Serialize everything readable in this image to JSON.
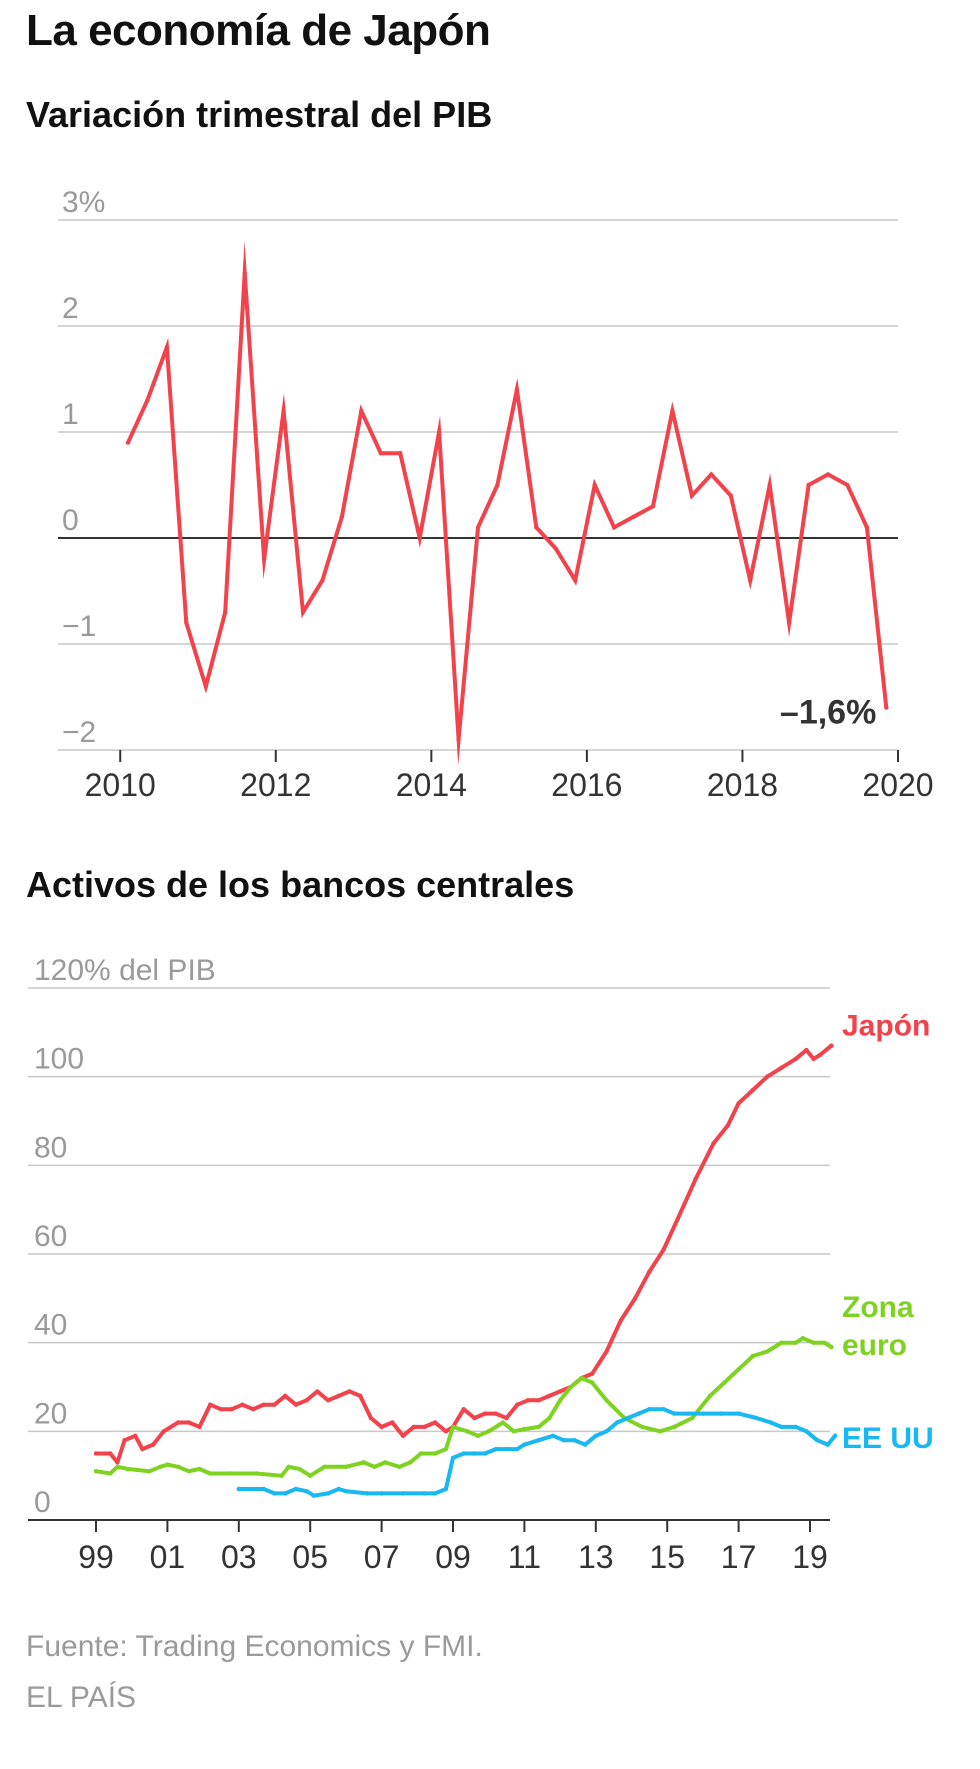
{
  "title": "La economía de Japón",
  "source": "Fuente: Trading Economics y FMI.",
  "credit": "EL PAÍS",
  "chart_data": [
    {
      "type": "line",
      "title": "Variación trimestral del PIB",
      "ylim": [
        -2,
        3
      ],
      "xlim": [
        2009.2,
        2020
      ],
      "y_ticks": [
        3,
        2,
        1,
        0,
        -1,
        -2
      ],
      "y_tick_labels": [
        "3%",
        "2",
        "1",
        "0",
        "−1",
        "−2"
      ],
      "x_ticks": [
        2010,
        2012,
        2014,
        2016,
        2018,
        2020
      ],
      "x_tick_labels": [
        "2010",
        "2012",
        "2014",
        "2016",
        "2018",
        "2020"
      ],
      "grid": true,
      "annotation": "–1,6%",
      "series": [
        {
          "color": "#f2424b",
          "x": [
            2010.1,
            2010.35,
            2010.6,
            2010.85,
            2011.1,
            2011.35,
            2011.6,
            2011.85,
            2012.1,
            2012.35,
            2012.6,
            2012.85,
            2013.1,
            2013.35,
            2013.6,
            2013.85,
            2014.1,
            2014.35,
            2014.6,
            2014.85,
            2015.1,
            2015.35,
            2015.6,
            2015.85,
            2016.1,
            2016.35,
            2016.6,
            2016.85,
            2017.1,
            2017.35,
            2017.6,
            2017.85,
            2018.1,
            2018.35,
            2018.6,
            2018.85,
            2019.1,
            2019.35,
            2019.6,
            2019.85
          ],
          "values": [
            0.9,
            1.3,
            1.8,
            -0.8,
            -1.4,
            -0.7,
            2.5,
            -0.2,
            1.2,
            -0.7,
            -0.4,
            0.2,
            1.2,
            0.8,
            0.8,
            0.0,
            1.0,
            -1.9,
            0.1,
            0.5,
            1.4,
            0.1,
            -0.1,
            -0.4,
            0.5,
            0.1,
            0.2,
            0.3,
            1.2,
            0.4,
            0.6,
            0.4,
            -0.4,
            0.5,
            -0.8,
            0.5,
            0.6,
            0.5,
            0.1,
            -1.6
          ]
        }
      ]
    },
    {
      "type": "line",
      "title": "Activos de los bancos centrales",
      "ylim": [
        0,
        120
      ],
      "xlim": [
        1999,
        2020.3
      ],
      "y_ticks": [
        120,
        100,
        80,
        60,
        40,
        20,
        0
      ],
      "y_tick_labels": [
        "120% del PIB",
        "100",
        "80",
        "60",
        "40",
        "20",
        "0"
      ],
      "x_ticks": [
        1999,
        2001,
        2003,
        2005,
        2007,
        2009,
        2011,
        2013,
        2015,
        2017,
        2019
      ],
      "x_tick_labels": [
        "99",
        "01",
        "03",
        "05",
        "07",
        "09",
        "11",
        "13",
        "15",
        "17",
        "19"
      ],
      "grid": true,
      "series": [
        {
          "name": "Japón",
          "color": "#f2424b",
          "x": [
            1999.0,
            1999.4,
            1999.6,
            1999.8,
            2000.1,
            2000.3,
            2000.6,
            2000.9,
            2001.3,
            2001.6,
            2001.9,
            2002.2,
            2002.5,
            2002.8,
            2003.1,
            2003.4,
            2003.7,
            2004.0,
            2004.3,
            2004.6,
            2004.9,
            2005.2,
            2005.5,
            2005.8,
            2006.1,
            2006.4,
            2006.7,
            2007.0,
            2007.3,
            2007.6,
            2007.9,
            2008.2,
            2008.5,
            2008.8,
            2009.0,
            2009.3,
            2009.6,
            2009.9,
            2010.2,
            2010.5,
            2010.8,
            2011.1,
            2011.4,
            2011.7,
            2012.0,
            2012.3,
            2012.6,
            2012.9,
            2013.3,
            2013.7,
            2014.1,
            2014.5,
            2014.9,
            2015.3,
            2015.8,
            2016.3,
            2016.7,
            2017.0,
            2017.4,
            2017.8,
            2018.2,
            2018.6,
            2018.9,
            2019.1,
            2019.3,
            2019.6
          ],
          "values": [
            15,
            15,
            13,
            18,
            19,
            16,
            17,
            20,
            22,
            22,
            21,
            26,
            25,
            25,
            26,
            25,
            26,
            26,
            28,
            26,
            27,
            29,
            27,
            28,
            29,
            28,
            23,
            21,
            22,
            19,
            21,
            21,
            22,
            20,
            21,
            25,
            23,
            24,
            24,
            23,
            26,
            27,
            27,
            28,
            29,
            30,
            32,
            33,
            38,
            45,
            50,
            56,
            61,
            68,
            77,
            85,
            89,
            94,
            97,
            100,
            102,
            104,
            106,
            104,
            105,
            107
          ]
        },
        {
          "name": "Zona euro",
          "color": "#7ed321",
          "x": [
            1999.0,
            1999.4,
            1999.6,
            1999.9,
            2000.5,
            2000.8,
            2001.0,
            2001.3,
            2001.6,
            2001.9,
            2002.2,
            2002.8,
            2003.5,
            2004.2,
            2004.4,
            2004.7,
            2005.0,
            2005.4,
            2006.0,
            2006.5,
            2006.8,
            2007.1,
            2007.5,
            2007.8,
            2008.1,
            2008.5,
            2008.8,
            2009.0,
            2009.4,
            2009.7,
            2010.0,
            2010.4,
            2010.7,
            2011.0,
            2011.4,
            2011.7,
            2012.0,
            2012.3,
            2012.6,
            2012.9,
            2013.3,
            2013.8,
            2014.3,
            2014.8,
            2015.2,
            2015.7,
            2016.2,
            2016.6,
            2017.0,
            2017.4,
            2017.8,
            2018.2,
            2018.6,
            2018.8,
            2019.1,
            2019.4,
            2019.6
          ],
          "values": [
            11,
            10.5,
            12,
            11.5,
            11,
            12,
            12.5,
            12,
            11,
            11.5,
            10.5,
            10.5,
            10.5,
            10,
            12,
            11.5,
            10,
            12,
            12,
            13,
            12,
            13,
            12,
            13,
            15,
            15,
            16,
            21,
            20,
            19,
            20,
            22,
            20,
            20.5,
            21,
            23,
            27,
            30,
            32,
            31,
            27,
            23,
            21,
            20,
            21,
            23,
            28,
            31,
            34,
            37,
            38,
            40,
            40,
            41,
            40,
            40,
            39
          ]
        },
        {
          "name": "EE UU",
          "color": "#18b8f0",
          "x": [
            2003.0,
            2003.7,
            2004.0,
            2004.3,
            2004.6,
            2004.9,
            2005.1,
            2005.5,
            2005.8,
            2006.0,
            2006.6,
            2007.0,
            2007.6,
            2008.2,
            2008.5,
            2008.8,
            2009.0,
            2009.3,
            2009.6,
            2009.9,
            2010.2,
            2010.5,
            2010.8,
            2011.0,
            2011.4,
            2011.8,
            2012.1,
            2012.4,
            2012.7,
            2013.0,
            2013.3,
            2013.6,
            2013.9,
            2014.2,
            2014.5,
            2014.9,
            2015.2,
            2015.6,
            2016.0,
            2016.5,
            2017.0,
            2017.5,
            2017.9,
            2018.2,
            2018.6,
            2018.9,
            2019.2,
            2019.5,
            2019.7
          ],
          "values": [
            7,
            7,
            6,
            6,
            7,
            6.5,
            5.5,
            6,
            7,
            6.5,
            6,
            6,
            6,
            6,
            6,
            7,
            14,
            15,
            15,
            15,
            16,
            16,
            16,
            17,
            18,
            19,
            18,
            18,
            17,
            19,
            20,
            22,
            23,
            24,
            25,
            25,
            24,
            24,
            24,
            24,
            24,
            23,
            22,
            21,
            21,
            20,
            18,
            17,
            19
          ]
        }
      ]
    }
  ]
}
